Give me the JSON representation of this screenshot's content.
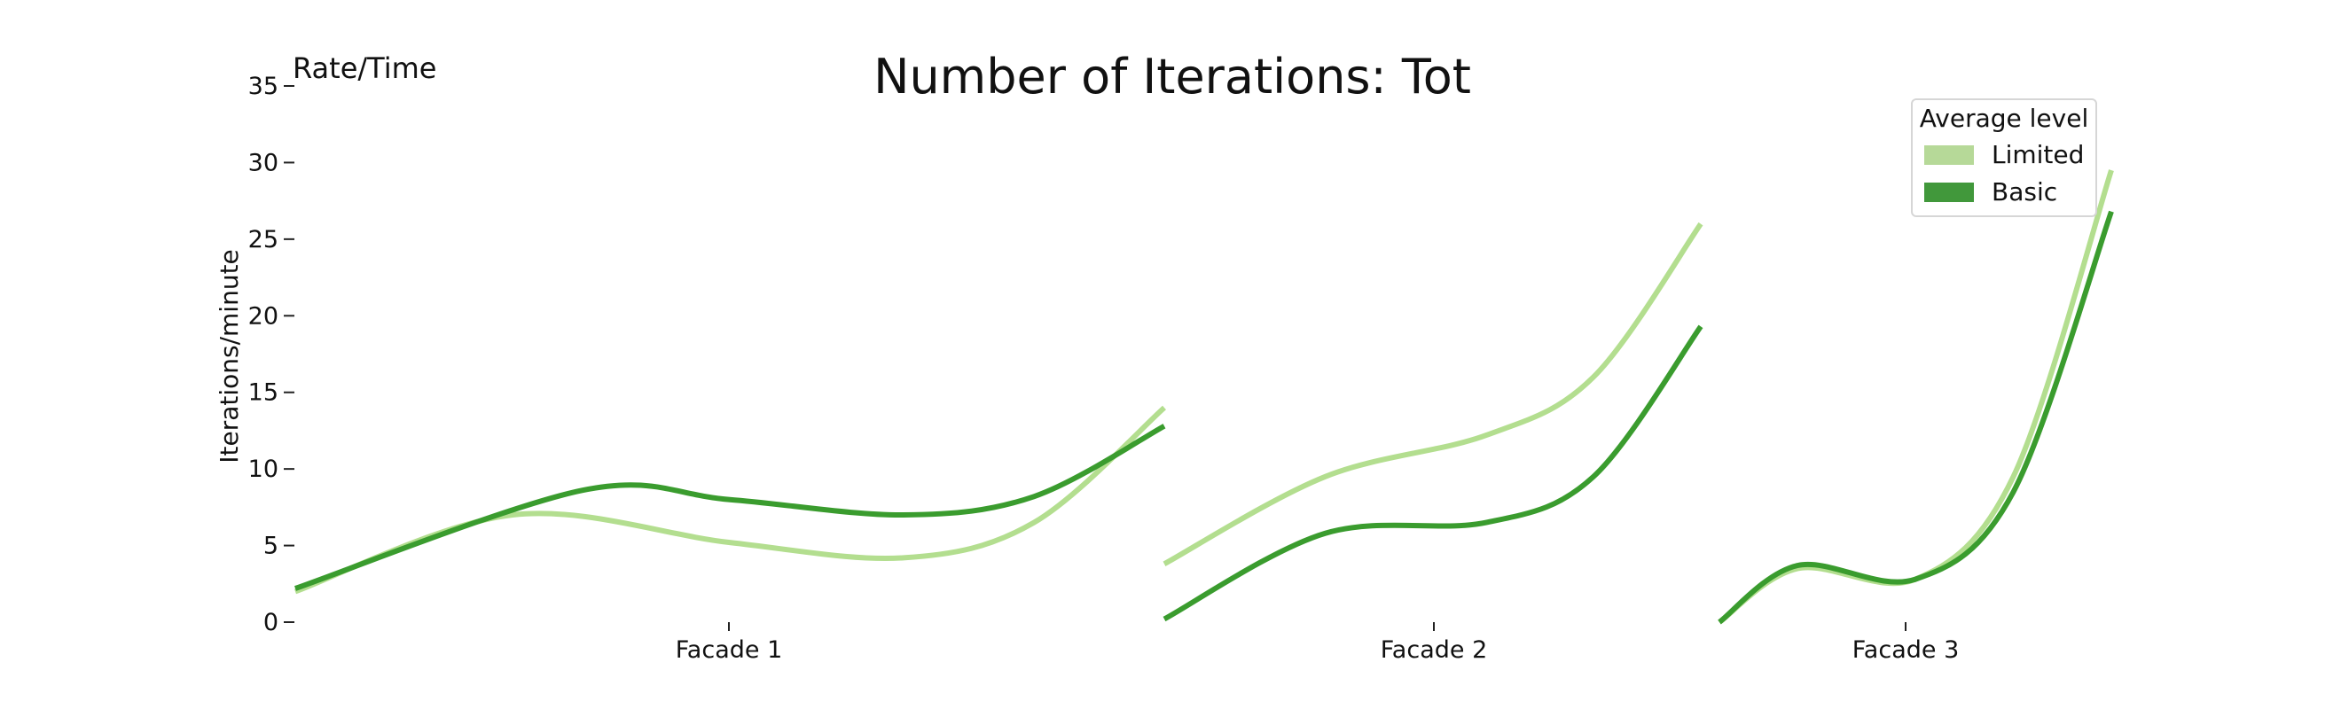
{
  "chart_data": {
    "type": "line",
    "title": "Number of Iterations: Tot",
    "corner_label": "Rate/Time",
    "ylabel": "Iterations/minute",
    "xlabel": "",
    "ylim": [
      0,
      35
    ],
    "yticks": [
      0,
      5,
      10,
      15,
      20,
      25,
      30,
      35
    ],
    "grid": false,
    "legend": {
      "title": "Average level",
      "placement": "top-right",
      "entries": [
        "Limited",
        "Basic"
      ]
    },
    "categories": [
      "Facade 1",
      "Facade 2",
      "Facade 3"
    ],
    "segments": [
      {
        "category": "Facade 1",
        "x_range": [
          0,
          1
        ],
        "series": [
          {
            "name": "Limited",
            "color": "#b3de8f",
            "values": [
              [
                0,
                2.0
              ],
              [
                0.25,
                7.0
              ],
              [
                0.5,
                5.2
              ],
              [
                0.7,
                4.2
              ],
              [
                0.85,
                6.5
              ],
              [
                1,
                14.0
              ]
            ]
          },
          {
            "name": "Basic",
            "color": "#3a9c2e",
            "values": [
              [
                0,
                2.2
              ],
              [
                0.33,
                8.6
              ],
              [
                0.5,
                8.0
              ],
              [
                0.7,
                7.0
              ],
              [
                0.85,
                8.2
              ],
              [
                1,
                12.8
              ]
            ]
          }
        ]
      },
      {
        "category": "Facade 2",
        "x_range": [
          0,
          1
        ],
        "series": [
          {
            "name": "Limited",
            "color": "#b3de8f",
            "values": [
              [
                0,
                3.8
              ],
              [
                0.3,
                9.5
              ],
              [
                0.6,
                12.2
              ],
              [
                0.8,
                16.0
              ],
              [
                1,
                26.0
              ]
            ]
          },
          {
            "name": "Basic",
            "color": "#3a9c2e",
            "values": [
              [
                0,
                0.2
              ],
              [
                0.3,
                5.8
              ],
              [
                0.6,
                6.5
              ],
              [
                0.8,
                9.5
              ],
              [
                1,
                19.3
              ]
            ]
          }
        ]
      },
      {
        "category": "Facade 3",
        "x_range": [
          0,
          1
        ],
        "series": [
          {
            "name": "Limited",
            "color": "#b3de8f",
            "values": [
              [
                0,
                0.0
              ],
              [
                0.2,
                3.5
              ],
              [
                0.5,
                2.8
              ],
              [
                0.75,
                9.5
              ],
              [
                1,
                29.5
              ]
            ]
          },
          {
            "name": "Basic",
            "color": "#3a9c2e",
            "values": [
              [
                0,
                0.0
              ],
              [
                0.2,
                3.7
              ],
              [
                0.5,
                2.8
              ],
              [
                0.75,
                8.5
              ],
              [
                1,
                26.8
              ]
            ]
          }
        ]
      }
    ],
    "legend_colors": {
      "Limited": "#b6d998",
      "Basic": "#41983b"
    }
  }
}
